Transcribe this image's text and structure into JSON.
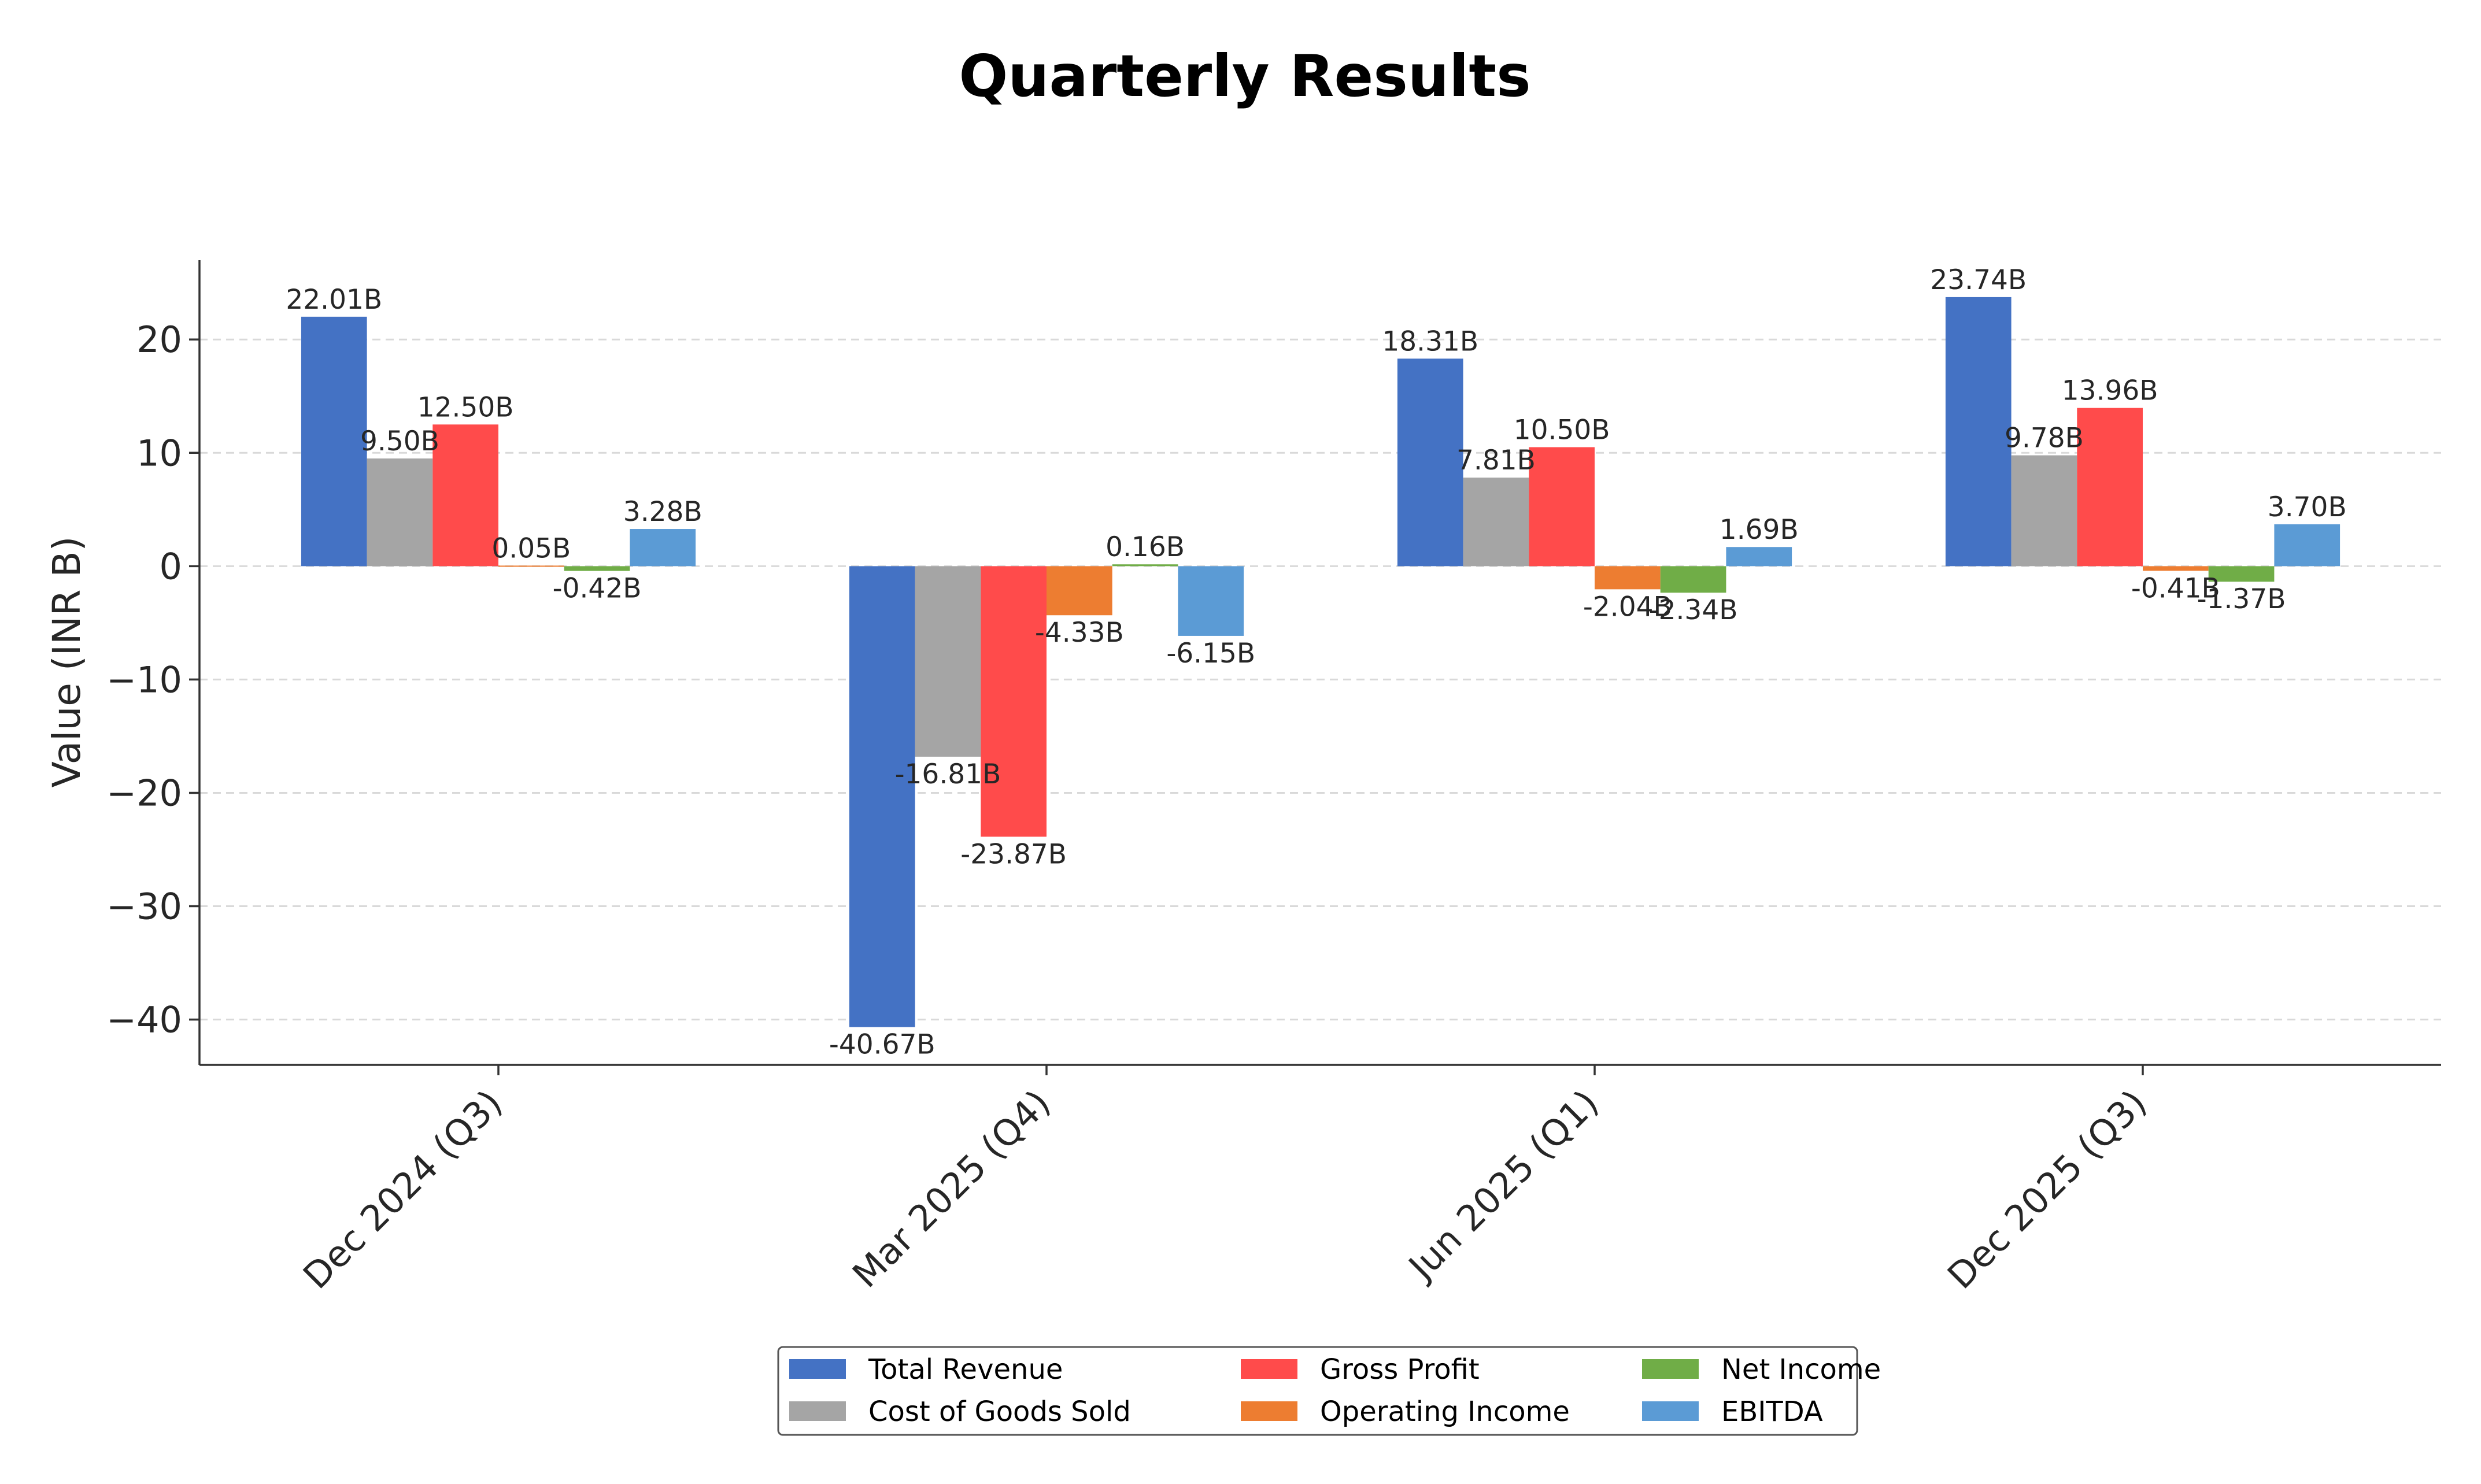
{
  "chart_data": {
    "type": "bar",
    "title": "Quarterly Results",
    "ylabel": "Value (INR B)",
    "xlabel": "",
    "categories": [
      "Dec 2024 (Q3)",
      "Mar 2025 (Q4)",
      "Jun 2025 (Q1)",
      "Dec 2025 (Q3)"
    ],
    "ylim": [
      -44,
      27
    ],
    "yticks": [
      -40,
      -30,
      -20,
      -10,
      0,
      10,
      20
    ],
    "ytick_labels": [
      "−40",
      "−30",
      "−20",
      "−10",
      "0",
      "10",
      "20"
    ],
    "grid": true,
    "legend": {
      "position": "bottom-center",
      "columns": 3
    },
    "series": [
      {
        "name": "Total Revenue",
        "color": "#4472C4",
        "values": [
          22.01,
          -40.67,
          18.31,
          23.74
        ],
        "labels": [
          "22.01B",
          "-40.67B",
          "18.31B",
          "23.74B"
        ]
      },
      {
        "name": "Cost of Goods Sold",
        "color": "#A5A5A5",
        "values": [
          9.5,
          -16.81,
          7.81,
          9.78
        ],
        "labels": [
          "9.50B",
          "-16.81B",
          "7.81B",
          "9.78B"
        ]
      },
      {
        "name": "Gross Profit",
        "color": "#FF4B4B",
        "values": [
          12.5,
          -23.87,
          10.5,
          13.96
        ],
        "labels": [
          "12.50B",
          "-23.87B",
          "10.50B",
          "13.96B"
        ]
      },
      {
        "name": "Operating Income",
        "color": "#ED7D31",
        "values": [
          0.05,
          -4.33,
          -2.04,
          -0.41
        ],
        "labels": [
          "0.05B",
          "-4.33B",
          "-2.04B",
          "-0.41B"
        ]
      },
      {
        "name": "Net Income",
        "color": "#70AD47",
        "values": [
          -0.42,
          0.16,
          -2.34,
          -1.37
        ],
        "labels": [
          "-0.42B",
          "0.16B",
          "-2.34B",
          "-1.37B"
        ]
      },
      {
        "name": "EBITDA",
        "color": "#5B9BD5",
        "values": [
          3.28,
          -6.15,
          1.69,
          3.7
        ],
        "labels": [
          "3.28B",
          "-6.15B",
          "1.69B",
          "3.70B"
        ]
      }
    ]
  }
}
